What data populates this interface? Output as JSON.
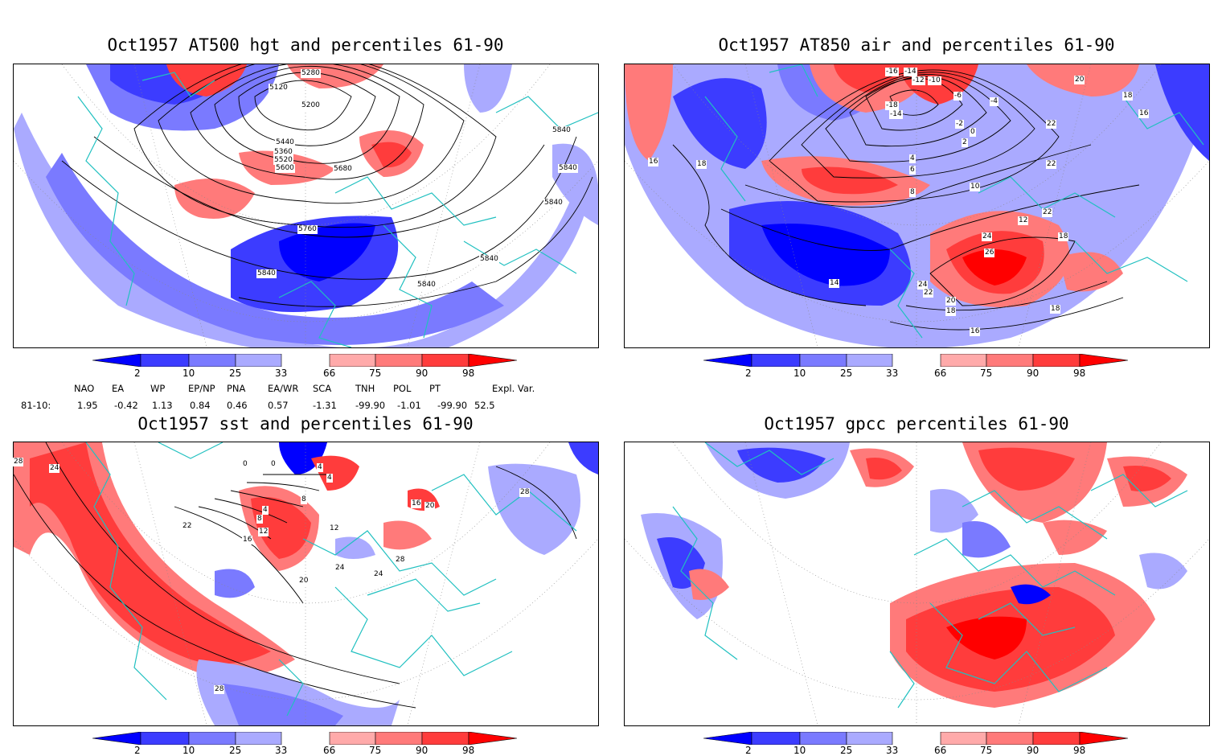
{
  "panels": [
    {
      "title": "Oct1957 AT500 hgt and percentiles 61-90",
      "contour_labels": [
        "5120",
        "5200",
        "5280",
        "5440",
        "5360",
        "5520",
        "5600",
        "5680",
        "5760",
        "5840",
        "5840",
        "5840",
        "5840",
        "5840",
        "5840"
      ]
    },
    {
      "title": "Oct1957 AT850 air and percentiles 61-90",
      "contour_labels": [
        "-16",
        "-14",
        "-12",
        "-10",
        "-6",
        "-4",
        "-18",
        "-14",
        "-2",
        "0",
        "2",
        "4",
        "6",
        "8",
        "10",
        "12",
        "14",
        "16",
        "16",
        "18",
        "18",
        "20",
        "22",
        "22",
        "22",
        "24",
        "26",
        "24",
        "22",
        "20",
        "18",
        "16",
        "18",
        "18"
      ]
    },
    {
      "title": "Oct1957 sst and percentiles 61-90",
      "contour_labels": [
        "28",
        "24",
        "22",
        "16",
        "12",
        "8",
        "4",
        "0",
        "0",
        "4",
        "4",
        "8",
        "12",
        "16",
        "20",
        "20",
        "24",
        "24",
        "28",
        "28",
        "28"
      ]
    },
    {
      "title": "Oct1957 gpcc percentiles 61-90",
      "contour_labels": []
    }
  ],
  "colorbar": {
    "labels": [
      "2",
      "10",
      "25",
      "33",
      "66",
      "75",
      "90",
      "98"
    ],
    "colors": {
      "blue_dark": "#0000ff",
      "blue_mid": "#3c3cff",
      "blue_light": "#7a7aff",
      "blue_pale": "#aaaaff",
      "red_pale": "#ffaaaa",
      "red_light": "#ff7a7a",
      "red_mid": "#ff3c3c",
      "red_dark": "#ff0000",
      "coast": "#20c0c0"
    }
  },
  "indices": {
    "header": [
      "NAO",
      "EA",
      "WP",
      "EP/NP",
      "PNA",
      "EA/WR",
      "SCA",
      "TNH",
      "POL",
      "PT",
      "Expl. Var."
    ],
    "row_label": "81-10:",
    "values": [
      "1.95",
      "-0.42",
      "1.13",
      "0.84",
      "0.46",
      "0.57",
      "-1.31",
      "-99.90",
      "-1.01",
      "-99.90",
      "52.5"
    ]
  }
}
